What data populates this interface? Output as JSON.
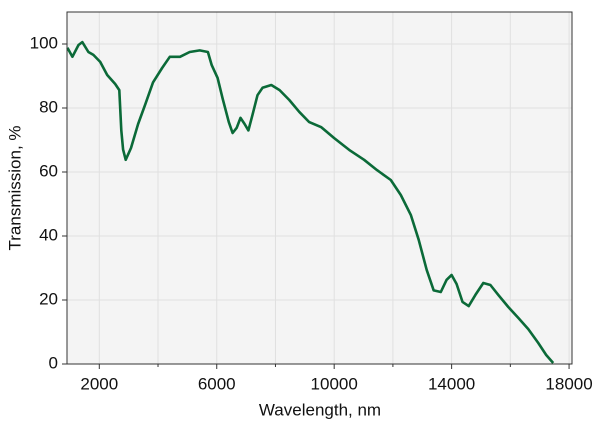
{
  "chart_data": {
    "type": "line",
    "x_label": "Wavelength, nm",
    "y_label": "Transmission, %",
    "x": [
      915,
      1085,
      1290,
      1420,
      1630,
      1800,
      2030,
      2270,
      2540,
      2680,
      2750,
      2810,
      2900,
      3080,
      3320,
      3560,
      3830,
      4140,
      4400,
      4750,
      5080,
      5420,
      5700,
      5830,
      6030,
      6200,
      6410,
      6540,
      6680,
      6810,
      6950,
      7080,
      7220,
      7390,
      7560,
      7860,
      8140,
      8470,
      8810,
      9150,
      9560,
      10000,
      10510,
      11020,
      11460,
      11930,
      12270,
      12610,
      12880,
      13150,
      13390,
      13630,
      13830,
      14000,
      14170,
      14370,
      14580,
      14810,
      15080,
      15320,
      15590,
      15930,
      16270,
      16610,
      16950,
      17220,
      17460
    ],
    "series": [
      {
        "color": "#0b6a38",
        "values": [
          98.8,
          96,
          99.7,
          100.6,
          97.5,
          96.6,
          94.4,
          90.3,
          87.5,
          85.6,
          73,
          67,
          63.8,
          67.5,
          75,
          81,
          88,
          92.5,
          96,
          96,
          97.5,
          98,
          97.5,
          93.4,
          89.4,
          83,
          75.6,
          72.2,
          73.8,
          76.9,
          75,
          73,
          78,
          84,
          86.3,
          87.2,
          85.6,
          82.5,
          78.8,
          75.6,
          74,
          70.6,
          66.9,
          63.8,
          60.6,
          57.5,
          52.8,
          46.6,
          38.8,
          29.4,
          23,
          22.5,
          26.3,
          27.8,
          25,
          19.4,
          18.1,
          21.6,
          25.3,
          24.7,
          21.6,
          17.8,
          14.4,
          10.9,
          6.6,
          2.8,
          0.3
        ]
      }
    ],
    "xlim": [
      900,
      18100
    ],
    "ylim": [
      0,
      110
    ],
    "xticks": [
      2000,
      6000,
      10000,
      14000,
      18000
    ],
    "xminor": [
      4000,
      8000,
      12000,
      16000
    ],
    "yticks": [
      0,
      20,
      40,
      60,
      80,
      100
    ],
    "grid": true
  }
}
